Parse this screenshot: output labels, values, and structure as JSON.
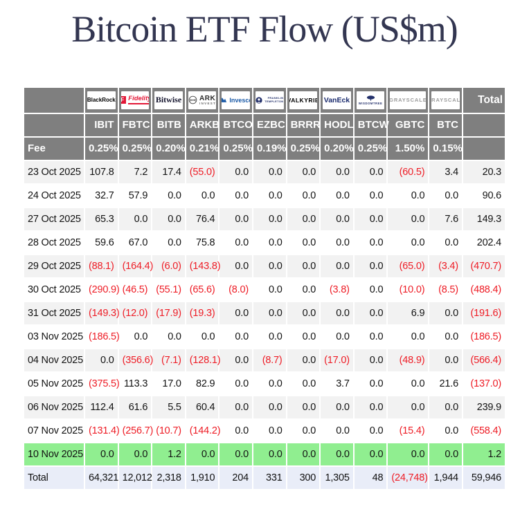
{
  "title": "Bitcoin ETF Flow (US$m)",
  "colors": {
    "title_color": "#333651",
    "header_bg": "#7f7f7f",
    "row_alt_bg": "#f2f2f2",
    "green_row_bg": "#90ee90",
    "total_row_bg": "#e9edf8",
    "negative": "#ee1c25",
    "fidelity_red": "#e31837",
    "invesco_blue": "#1b5aa7",
    "navy_logo": "#23306b"
  },
  "chart_data": {
    "type": "table",
    "title": "Bitcoin ETF Flow (US$m)",
    "unit": "US$m",
    "fee_label": "Fee",
    "total_column_label": "Total",
    "total_row_label": "Total",
    "negative_format": "parentheses-red",
    "highlight_row_note": "10 Nov 2025 row highlighted green; Total row highlighted light blue",
    "issuers": [
      {
        "name": "BlackRock",
        "style": "blackrock",
        "logo": "BlackRock",
        "ticker": "IBIT",
        "fee": "0.25%"
      },
      {
        "name": "Fidelity",
        "style": "fidelity",
        "logo": "Fidelity",
        "ticker": "FBTC",
        "fee": "0.25%"
      },
      {
        "name": "Bitwise",
        "style": "bitwise",
        "logo": "Bitwise",
        "ticker": "BITB",
        "fee": "0.20%"
      },
      {
        "name": "ARK Invest",
        "style": "ark",
        "logo": "ARK INVEST",
        "logo_lines": [
          "ARK",
          "INVEST"
        ],
        "ticker": "ARKB",
        "fee": "0.21%"
      },
      {
        "name": "Invesco",
        "style": "invesco",
        "logo": "Invesco",
        "ticker": "BTCO",
        "fee": "0.25%"
      },
      {
        "name": "Franklin Templeton",
        "style": "franklin",
        "logo": "FRANKLIN TEMPLETON",
        "logo_lines": [
          "FRANKLIN",
          "TEMPLETON"
        ],
        "ticker": "EZBC",
        "fee": "0.19%"
      },
      {
        "name": "Valkyrie",
        "style": "valkyrie",
        "logo": "VALKYRIE",
        "ticker": "BRRR",
        "fee": "0.25%"
      },
      {
        "name": "VanEck",
        "style": "vaneck",
        "logo": "VanEck",
        "ticker": "HODL",
        "fee": "0.20%"
      },
      {
        "name": "WisdomTree",
        "style": "wisdomtree",
        "logo": "WISDOMTREE",
        "ticker": "BTCW",
        "fee": "0.25%"
      },
      {
        "name": "Grayscale",
        "style": "grayscale",
        "logo": "GRAYSCALE",
        "ticker": "GBTC",
        "fee": "1.50%",
        "wide": true
      },
      {
        "name": "Grayscale",
        "style": "grayscale",
        "logo": "GRAYSCALE",
        "ticker": "BTC",
        "fee": "0.15%"
      }
    ],
    "rows": [
      {
        "date": "23 Oct 2025",
        "values": [
          "107.8",
          "7.2",
          "17.4",
          "(55.0)",
          "0.0",
          "0.0",
          "0.0",
          "0.0",
          "0.0",
          "(60.5)",
          "3.4"
        ],
        "total": "20.3"
      },
      {
        "date": "24 Oct 2025",
        "values": [
          "32.7",
          "57.9",
          "0.0",
          "0.0",
          "0.0",
          "0.0",
          "0.0",
          "0.0",
          "0.0",
          "0.0",
          "0.0"
        ],
        "total": "90.6"
      },
      {
        "date": "27 Oct 2025",
        "values": [
          "65.3",
          "0.0",
          "0.0",
          "76.4",
          "0.0",
          "0.0",
          "0.0",
          "0.0",
          "0.0",
          "0.0",
          "7.6"
        ],
        "total": "149.3"
      },
      {
        "date": "28 Oct 2025",
        "values": [
          "59.6",
          "67.0",
          "0.0",
          "75.8",
          "0.0",
          "0.0",
          "0.0",
          "0.0",
          "0.0",
          "0.0",
          "0.0"
        ],
        "total": "202.4"
      },
      {
        "date": "29 Oct 2025",
        "values": [
          "(88.1)",
          "(164.4)",
          "(6.0)",
          "(143.8)",
          "0.0",
          "0.0",
          "0.0",
          "0.0",
          "0.0",
          "(65.0)",
          "(3.4)"
        ],
        "total": "(470.7)"
      },
      {
        "date": "30 Oct 2025",
        "values": [
          "(290.9)",
          "(46.5)",
          "(55.1)",
          "(65.6)",
          "(8.0)",
          "0.0",
          "0.0",
          "(3.8)",
          "0.0",
          "(10.0)",
          "(8.5)"
        ],
        "total": "(488.4)"
      },
      {
        "date": "31 Oct 2025",
        "values": [
          "(149.3)",
          "(12.0)",
          "(17.9)",
          "(19.3)",
          "0.0",
          "0.0",
          "0.0",
          "0.0",
          "0.0",
          "6.9",
          "0.0"
        ],
        "total": "(191.6)"
      },
      {
        "date": "03 Nov 2025",
        "values": [
          "(186.5)",
          "0.0",
          "0.0",
          "0.0",
          "0.0",
          "0.0",
          "0.0",
          "0.0",
          "0.0",
          "0.0",
          "0.0"
        ],
        "total": "(186.5)"
      },
      {
        "date": "04 Nov 2025",
        "values": [
          "0.0",
          "(356.6)",
          "(7.1)",
          "(128.1)",
          "0.0",
          "(8.7)",
          "0.0",
          "(17.0)",
          "0.0",
          "(48.9)",
          "0.0"
        ],
        "total": "(566.4)"
      },
      {
        "date": "05 Nov 2025",
        "values": [
          "(375.5)",
          "113.3",
          "17.0",
          "82.9",
          "0.0",
          "0.0",
          "0.0",
          "3.7",
          "0.0",
          "0.0",
          "21.6"
        ],
        "total": "(137.0)"
      },
      {
        "date": "06 Nov 2025",
        "values": [
          "112.4",
          "61.6",
          "5.5",
          "60.4",
          "0.0",
          "0.0",
          "0.0",
          "0.0",
          "0.0",
          "0.0",
          "0.0"
        ],
        "total": "239.9"
      },
      {
        "date": "07 Nov 2025",
        "values": [
          "(131.4)",
          "(256.7)",
          "(10.7)",
          "(144.2)",
          "0.0",
          "0.0",
          "0.0",
          "0.0",
          "0.0",
          "(15.4)",
          "0.0"
        ],
        "total": "(558.4)"
      },
      {
        "date": "10 Nov 2025",
        "values": [
          "0.0",
          "0.0",
          "1.2",
          "0.0",
          "0.0",
          "0.0",
          "0.0",
          "0.0",
          "0.0",
          "0.0",
          "0.0"
        ],
        "total": "1.2",
        "highlight": true
      }
    ],
    "total_row": {
      "label": "Total",
      "values": [
        "64,321",
        "12,012",
        "2,318",
        "1,910",
        "204",
        "331",
        "300",
        "1,305",
        "48",
        "(24,748)",
        "1,944"
      ],
      "total": "59,946"
    }
  }
}
